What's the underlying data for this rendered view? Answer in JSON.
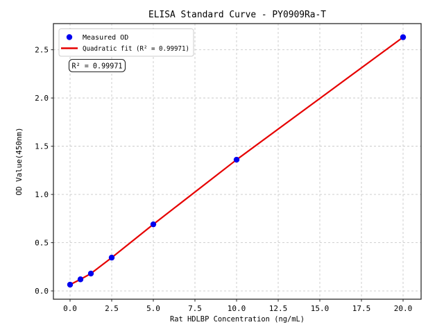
{
  "figure": {
    "background": "#ffffff",
    "frame_color": "#2b2b2b",
    "grid_color": "#c9c9c9"
  },
  "chart_data": {
    "type": "scatter",
    "title": "ELISA Standard Curve - PY0909Ra-T",
    "xlabel": "Rat HDLBP Concentration (ng/mL)",
    "ylabel": "OD Value(450nm)",
    "xlim": [
      -1.0,
      21.083
    ],
    "ylim": [
      -0.086,
      2.771
    ],
    "x_ticks": [
      0,
      2.5,
      5,
      7.5,
      10,
      12.5,
      15,
      17.5,
      20
    ],
    "x_tick_labels": [
      "0.0",
      "2.5",
      "5.0",
      "7.5",
      "10.0",
      "12.5",
      "15.0",
      "17.5",
      "20.0"
    ],
    "y_ticks": [
      0,
      0.5,
      1.0,
      1.5,
      2.0,
      2.5
    ],
    "y_tick_labels": [
      "0.0",
      "0.5",
      "1.0",
      "1.5",
      "2.0",
      "2.5"
    ],
    "grid": true,
    "grid_style": "dashed",
    "legend_position": "upper left",
    "series": [
      {
        "name": "Measured OD",
        "type": "scatter",
        "marker": "circle",
        "color": "#0000ee",
        "x": [
          0,
          0.625,
          1.25,
          2.5,
          5,
          10,
          20
        ],
        "y": [
          0.065,
          0.12,
          0.18,
          0.345,
          0.69,
          1.36,
          2.63
        ]
      },
      {
        "name": "Quadratic fit (R² = 0.99971)",
        "type": "line",
        "color": "#e60000",
        "x": [
          0,
          0.625,
          1.25,
          2.5,
          5,
          10,
          20
        ],
        "y": [
          0.065,
          0.12,
          0.18,
          0.345,
          0.69,
          1.36,
          2.63
        ]
      }
    ],
    "annotation": "R² = 0.99971",
    "r_squared": 0.99971
  }
}
